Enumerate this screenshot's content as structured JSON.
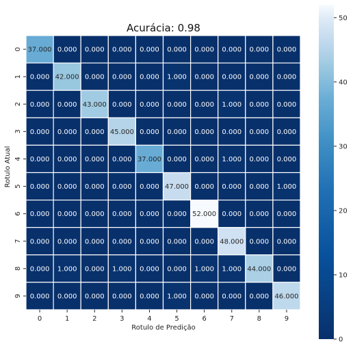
{
  "chart_data": {
    "type": "heatmap",
    "title": "Acurácia: 0.98",
    "xlabel": "Rotulo de Predição",
    "ylabel": "Rotulo Atual",
    "x_categories": [
      "0",
      "1",
      "2",
      "3",
      "4",
      "5",
      "6",
      "7",
      "8",
      "9"
    ],
    "y_categories": [
      "0",
      "1",
      "2",
      "3",
      "4",
      "5",
      "6",
      "7",
      "8",
      "9"
    ],
    "values": [
      [
        37,
        0,
        0,
        0,
        0,
        0,
        0,
        0,
        0,
        0
      ],
      [
        0,
        42,
        0,
        0,
        0,
        1,
        0,
        0,
        0,
        0
      ],
      [
        0,
        0,
        43,
        0,
        0,
        0,
        0,
        1,
        0,
        0
      ],
      [
        0,
        0,
        0,
        45,
        0,
        0,
        0,
        0,
        0,
        0
      ],
      [
        0,
        0,
        0,
        0,
        37,
        0,
        0,
        1,
        0,
        0
      ],
      [
        0,
        0,
        0,
        0,
        0,
        47,
        0,
        0,
        0,
        1
      ],
      [
        0,
        0,
        0,
        0,
        0,
        0,
        52,
        0,
        0,
        0
      ],
      [
        0,
        0,
        0,
        0,
        0,
        0,
        0,
        48,
        0,
        0
      ],
      [
        0,
        1,
        0,
        1,
        0,
        0,
        1,
        1,
        44,
        0
      ],
      [
        0,
        0,
        0,
        0,
        0,
        1,
        0,
        0,
        0,
        46
      ]
    ],
    "value_format_decimals": 3,
    "colormap": "Blues_r",
    "colorbar": {
      "range": [
        0,
        52
      ],
      "ticks": [
        0,
        10,
        20,
        30,
        40,
        50
      ],
      "tick_labels": [
        "0",
        "10",
        "20",
        "30",
        "40",
        "50"
      ]
    },
    "colors": {
      "low": "#08306b",
      "high": "#f7fbff",
      "cell_border": "#ffffff",
      "text_on_dark": "#ffffff",
      "text_on_light": "#262626"
    },
    "grid": false,
    "legend": "colorbar-right"
  }
}
